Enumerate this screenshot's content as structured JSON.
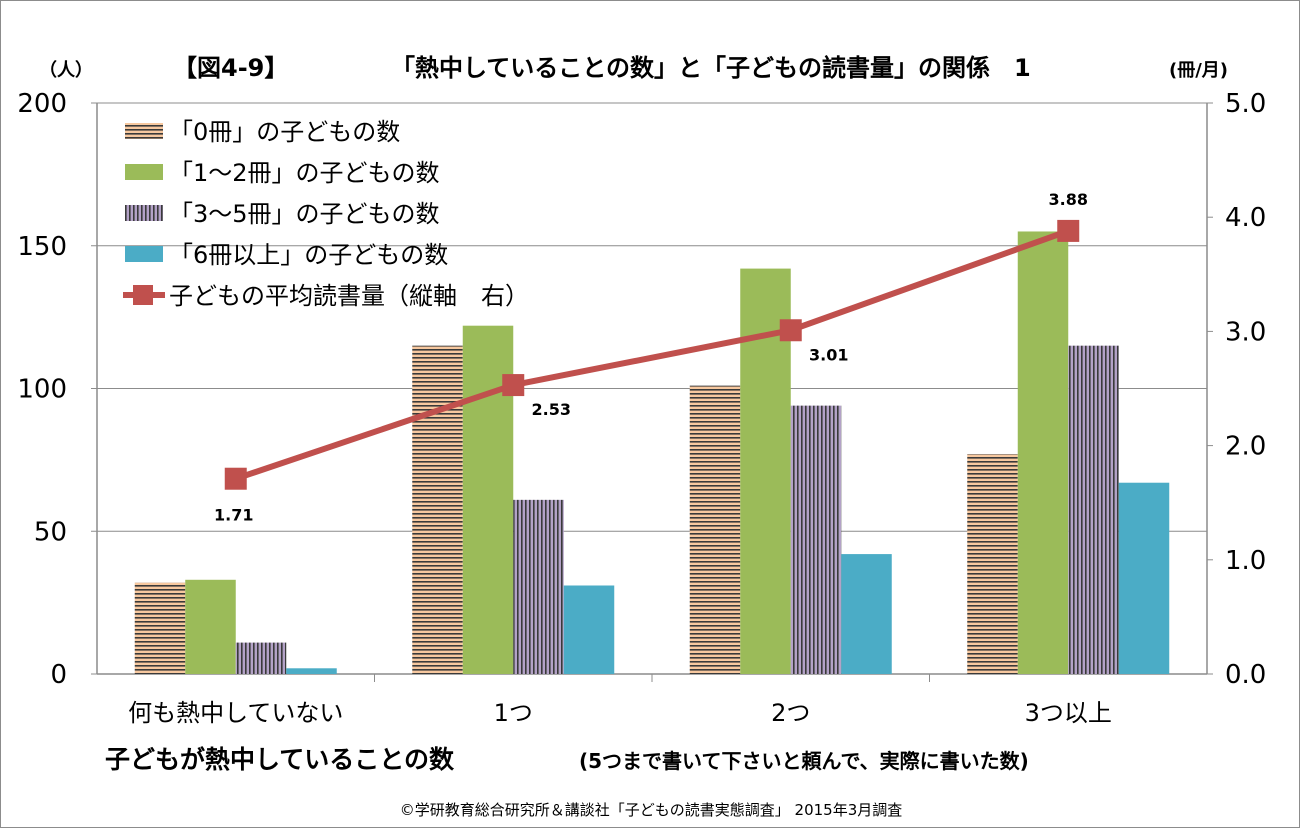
{
  "chart_data": {
    "type": "bar",
    "title_figure": "【図4-9】",
    "title": "「熱中していることの数」と「子どもの読書量」の関係　1",
    "ylabel_left": "（人）",
    "ylabel_right": "(冊/月)",
    "xlabel": "子どもが熱中していることの数",
    "xlabel_note": "(5つまで書いて下さいと頼んで、実際に書いた数)",
    "source": "©学研教育総合研究所＆講談社「子どもの読書実態調査」 2015年3月調査",
    "categories": [
      "何も熱中していない",
      "1つ",
      "2つ",
      "3つ以上"
    ],
    "ylim_left": [
      0,
      200
    ],
    "yticks_left": [
      "0",
      "50",
      "100",
      "150",
      "200"
    ],
    "ylim_right": [
      0,
      5
    ],
    "yticks_right": [
      "0.0",
      "1.0",
      "2.0",
      "3.0",
      "4.0",
      "5.0"
    ],
    "grid": true,
    "legend_position": "top-left",
    "series": [
      {
        "name": "「0冊」の子どもの数",
        "values": [
          32,
          115,
          101,
          77
        ],
        "color": "#f7c89f",
        "pattern": "horizontal-stripes"
      },
      {
        "name": "「1～2冊」の子どもの数",
        "values": [
          33,
          122,
          142,
          155
        ],
        "color": "#9bbb59",
        "pattern": "solid"
      },
      {
        "name": "「3～5冊」の子どもの数",
        "values": [
          11,
          61,
          94,
          115
        ],
        "color": "#b3a2c7",
        "pattern": "vertical-stripes"
      },
      {
        "name": "「6冊以上」の子どもの数",
        "values": [
          2,
          31,
          42,
          67
        ],
        "color": "#4bacc6",
        "pattern": "solid"
      }
    ],
    "line_series": {
      "name": "子どもの平均読書量（縦軸　右）",
      "axis": "right",
      "values": [
        1.71,
        2.53,
        3.01,
        3.88
      ],
      "labels": [
        "1.71",
        "2.53",
        "3.01",
        "3.88"
      ],
      "color": "#c0504d"
    }
  }
}
